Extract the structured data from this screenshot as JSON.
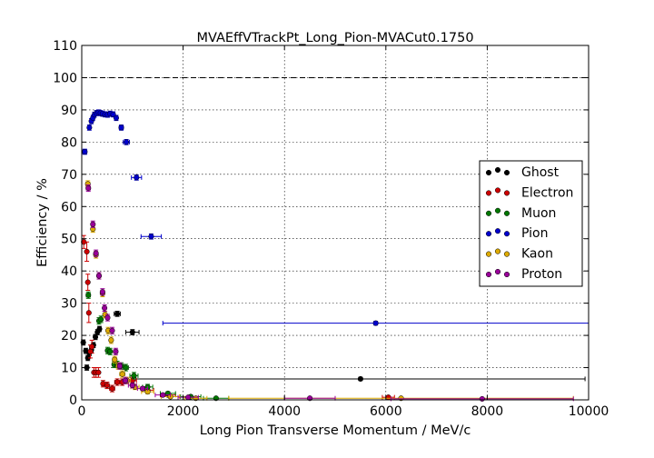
{
  "chart_data": {
    "type": "scatter",
    "title": "MVAEffVTrackPt_Long_Pion-MVACut0.1750",
    "xlabel": "Long Pion Transverse Momentum / MeV/c",
    "ylabel": "Efficiency / %",
    "xlim": [
      0,
      10000
    ],
    "ylim": [
      0,
      110
    ],
    "xticks": [
      0,
      2000,
      4000,
      6000,
      8000,
      10000
    ],
    "yticks": [
      0,
      10,
      20,
      30,
      40,
      50,
      60,
      70,
      80,
      90,
      100,
      110
    ],
    "grid": true,
    "reference_line_y": 100,
    "legend_position": "center-right",
    "series": [
      {
        "name": "Ghost",
        "color": "#000000",
        "points": [
          {
            "x": 30,
            "y": 17.8,
            "xerr": 25,
            "yerr": 0.8
          },
          {
            "x": 80,
            "y": 15.2,
            "xerr": 25,
            "yerr": 0.8
          },
          {
            "x": 100,
            "y": 10.0,
            "xerr": 15,
            "yerr": 0.8
          },
          {
            "x": 120,
            "y": 13.0,
            "xerr": 15,
            "yerr": 0.8
          },
          {
            "x": 150,
            "y": 14.5,
            "xerr": 15,
            "yerr": 0.8
          },
          {
            "x": 190,
            "y": 15.5,
            "xerr": 15,
            "yerr": 0.8
          },
          {
            "x": 230,
            "y": 17.0,
            "xerr": 15,
            "yerr": 0.8
          },
          {
            "x": 270,
            "y": 19.5,
            "xerr": 20,
            "yerr": 0.8
          },
          {
            "x": 310,
            "y": 21.0,
            "xerr": 20,
            "yerr": 0.8
          },
          {
            "x": 350,
            "y": 22.0,
            "xerr": 20,
            "yerr": 0.8
          },
          {
            "x": 700,
            "y": 26.7,
            "xerr": 60,
            "yerr": 0.8
          },
          {
            "x": 1000,
            "y": 21.0,
            "xerr": 130,
            "yerr": 0.8
          },
          {
            "x": 5500,
            "y": 6.5,
            "xerr": 4430,
            "yerr": 0.5
          }
        ]
      },
      {
        "name": "Electron",
        "color": "#cc0000",
        "points": [
          {
            "x": 40,
            "y": 49.0,
            "xerr": 25,
            "yerr": 2.0
          },
          {
            "x": 100,
            "y": 46.0,
            "xerr": 20,
            "yerr": 3.0
          },
          {
            "x": 120,
            "y": 36.5,
            "xerr": 15,
            "yerr": 2.5
          },
          {
            "x": 140,
            "y": 27.0,
            "xerr": 15,
            "yerr": 3.0
          },
          {
            "x": 170,
            "y": 15.0,
            "xerr": 15,
            "yerr": 2.0
          },
          {
            "x": 200,
            "y": 16.5,
            "xerr": 15,
            "yerr": 2.0
          },
          {
            "x": 240,
            "y": 8.5,
            "xerr": 20,
            "yerr": 1.5
          },
          {
            "x": 280,
            "y": 8.5,
            "xerr": 20,
            "yerr": 1.5
          },
          {
            "x": 330,
            "y": 8.5,
            "xerr": 20,
            "yerr": 1.5
          },
          {
            "x": 420,
            "y": 5.0,
            "xerr": 30,
            "yerr": 1.0
          },
          {
            "x": 500,
            "y": 4.5,
            "xerr": 40,
            "yerr": 1.0
          },
          {
            "x": 600,
            "y": 3.5,
            "xerr": 50,
            "yerr": 1.0
          },
          {
            "x": 700,
            "y": 5.5,
            "xerr": 50,
            "yerr": 1.0
          },
          {
            "x": 800,
            "y": 5.5,
            "xerr": 60,
            "yerr": 1.0
          },
          {
            "x": 1000,
            "y": 6.0,
            "xerr": 80,
            "yerr": 1.0
          },
          {
            "x": 1300,
            "y": 3.0,
            "xerr": 120,
            "yerr": 0.8
          },
          {
            "x": 1700,
            "y": 1.5,
            "xerr": 150,
            "yerr": 0.5
          },
          {
            "x": 6050,
            "y": 0.8,
            "xerr": 120,
            "yerr": 0.3
          }
        ]
      },
      {
        "name": "Muon",
        "color": "#007700",
        "points": [
          {
            "x": 130,
            "y": 32.5,
            "xerr": 40,
            "yerr": 1.0
          },
          {
            "x": 340,
            "y": 24.5,
            "xerr": 30,
            "yerr": 1.0
          },
          {
            "x": 380,
            "y": 25.0,
            "xerr": 30,
            "yerr": 1.0
          },
          {
            "x": 510,
            "y": 15.3,
            "xerr": 30,
            "yerr": 1.0
          },
          {
            "x": 560,
            "y": 15.0,
            "xerr": 30,
            "yerr": 1.0
          },
          {
            "x": 640,
            "y": 11.0,
            "xerr": 40,
            "yerr": 1.0
          },
          {
            "x": 700,
            "y": 11.0,
            "xerr": 40,
            "yerr": 1.0
          },
          {
            "x": 780,
            "y": 10.5,
            "xerr": 50,
            "yerr": 1.0
          },
          {
            "x": 870,
            "y": 10.0,
            "xerr": 50,
            "yerr": 1.0
          },
          {
            "x": 1030,
            "y": 7.5,
            "xerr": 80,
            "yerr": 1.0
          },
          {
            "x": 1300,
            "y": 4.0,
            "xerr": 100,
            "yerr": 0.8
          },
          {
            "x": 1700,
            "y": 2.0,
            "xerr": 150,
            "yerr": 0.5
          },
          {
            "x": 2150,
            "y": 1.0,
            "xerr": 200,
            "yerr": 0.5
          },
          {
            "x": 2650,
            "y": 0.5,
            "xerr": 250,
            "yerr": 0.3
          }
        ]
      },
      {
        "name": "Pion",
        "color": "#0000cc",
        "points": [
          {
            "x": 60,
            "y": 77.0,
            "xerr": 40,
            "yerr": 0.8
          },
          {
            "x": 150,
            "y": 84.5,
            "xerr": 20,
            "yerr": 0.8
          },
          {
            "x": 190,
            "y": 86.5,
            "xerr": 20,
            "yerr": 0.8
          },
          {
            "x": 220,
            "y": 87.5,
            "xerr": 20,
            "yerr": 0.8
          },
          {
            "x": 250,
            "y": 88.5,
            "xerr": 20,
            "yerr": 0.8
          },
          {
            "x": 290,
            "y": 89.0,
            "xerr": 20,
            "yerr": 0.8
          },
          {
            "x": 330,
            "y": 89.2,
            "xerr": 20,
            "yerr": 0.8
          },
          {
            "x": 370,
            "y": 89.0,
            "xerr": 20,
            "yerr": 0.8
          },
          {
            "x": 410,
            "y": 88.8,
            "xerr": 20,
            "yerr": 0.8
          },
          {
            "x": 460,
            "y": 88.6,
            "xerr": 25,
            "yerr": 0.8
          },
          {
            "x": 510,
            "y": 88.5,
            "xerr": 25,
            "yerr": 0.8
          },
          {
            "x": 560,
            "y": 88.8,
            "xerr": 25,
            "yerr": 0.8
          },
          {
            "x": 620,
            "y": 88.6,
            "xerr": 30,
            "yerr": 0.8
          },
          {
            "x": 680,
            "y": 87.5,
            "xerr": 30,
            "yerr": 0.8
          },
          {
            "x": 780,
            "y": 84.5,
            "xerr": 40,
            "yerr": 0.8
          },
          {
            "x": 880,
            "y": 80.0,
            "xerr": 60,
            "yerr": 0.8
          },
          {
            "x": 1080,
            "y": 69.0,
            "xerr": 100,
            "yerr": 0.8
          },
          {
            "x": 1370,
            "y": 50.7,
            "xerr": 200,
            "yerr": 0.8
          },
          {
            "x": 5800,
            "y": 23.8,
            "xerr": 4200,
            "yerr": 0.6
          }
        ]
      },
      {
        "name": "Kaon",
        "color": "#ddaa00",
        "points": [
          {
            "x": 120,
            "y": 67.0,
            "xerr": 40,
            "yerr": 1.0
          },
          {
            "x": 220,
            "y": 53.0,
            "xerr": 30,
            "yerr": 1.0
          },
          {
            "x": 280,
            "y": 45.0,
            "xerr": 30,
            "yerr": 1.0
          },
          {
            "x": 340,
            "y": 38.5,
            "xerr": 30,
            "yerr": 1.0
          },
          {
            "x": 410,
            "y": 33.0,
            "xerr": 30,
            "yerr": 1.0
          },
          {
            "x": 460,
            "y": 26.5,
            "xerr": 30,
            "yerr": 1.0
          },
          {
            "x": 520,
            "y": 21.5,
            "xerr": 30,
            "yerr": 1.0
          },
          {
            "x": 580,
            "y": 18.5,
            "xerr": 30,
            "yerr": 1.0
          },
          {
            "x": 650,
            "y": 12.5,
            "xerr": 40,
            "yerr": 1.0
          },
          {
            "x": 720,
            "y": 10.5,
            "xerr": 40,
            "yerr": 1.0
          },
          {
            "x": 800,
            "y": 8.0,
            "xerr": 50,
            "yerr": 1.0
          },
          {
            "x": 900,
            "y": 6.0,
            "xerr": 60,
            "yerr": 1.0
          },
          {
            "x": 1050,
            "y": 4.0,
            "xerr": 80,
            "yerr": 0.8
          },
          {
            "x": 1300,
            "y": 2.5,
            "xerr": 120,
            "yerr": 0.6
          },
          {
            "x": 1750,
            "y": 1.0,
            "xerr": 180,
            "yerr": 0.5
          },
          {
            "x": 2250,
            "y": 0.5,
            "xerr": 220,
            "yerr": 0.3
          },
          {
            "x": 6300,
            "y": 0.5,
            "xerr": 3400,
            "yerr": 0.3
          }
        ]
      },
      {
        "name": "Proton",
        "color": "#990099",
        "points": [
          {
            "x": 130,
            "y": 65.7,
            "xerr": 40,
            "yerr": 1.0
          },
          {
            "x": 220,
            "y": 54.5,
            "xerr": 30,
            "yerr": 1.0
          },
          {
            "x": 280,
            "y": 45.5,
            "xerr": 30,
            "yerr": 1.0
          },
          {
            "x": 340,
            "y": 38.5,
            "xerr": 30,
            "yerr": 1.0
          },
          {
            "x": 410,
            "y": 33.5,
            "xerr": 30,
            "yerr": 1.0
          },
          {
            "x": 450,
            "y": 28.5,
            "xerr": 30,
            "yerr": 1.0
          },
          {
            "x": 510,
            "y": 25.5,
            "xerr": 30,
            "yerr": 1.0
          },
          {
            "x": 600,
            "y": 21.5,
            "xerr": 30,
            "yerr": 1.0
          },
          {
            "x": 670,
            "y": 15.0,
            "xerr": 40,
            "yerr": 1.0
          },
          {
            "x": 750,
            "y": 10.5,
            "xerr": 40,
            "yerr": 1.0
          },
          {
            "x": 860,
            "y": 6.0,
            "xerr": 50,
            "yerr": 1.0
          },
          {
            "x": 1000,
            "y": 4.5,
            "xerr": 80,
            "yerr": 0.8
          },
          {
            "x": 1200,
            "y": 3.5,
            "xerr": 100,
            "yerr": 0.6
          },
          {
            "x": 1600,
            "y": 1.5,
            "xerr": 150,
            "yerr": 0.5
          },
          {
            "x": 2100,
            "y": 0.8,
            "xerr": 200,
            "yerr": 0.3
          },
          {
            "x": 4500,
            "y": 0.5,
            "xerr": 500,
            "yerr": 0.3
          },
          {
            "x": 7900,
            "y": 0.3,
            "xerr": 1800,
            "yerr": 0.2
          }
        ]
      }
    ]
  }
}
